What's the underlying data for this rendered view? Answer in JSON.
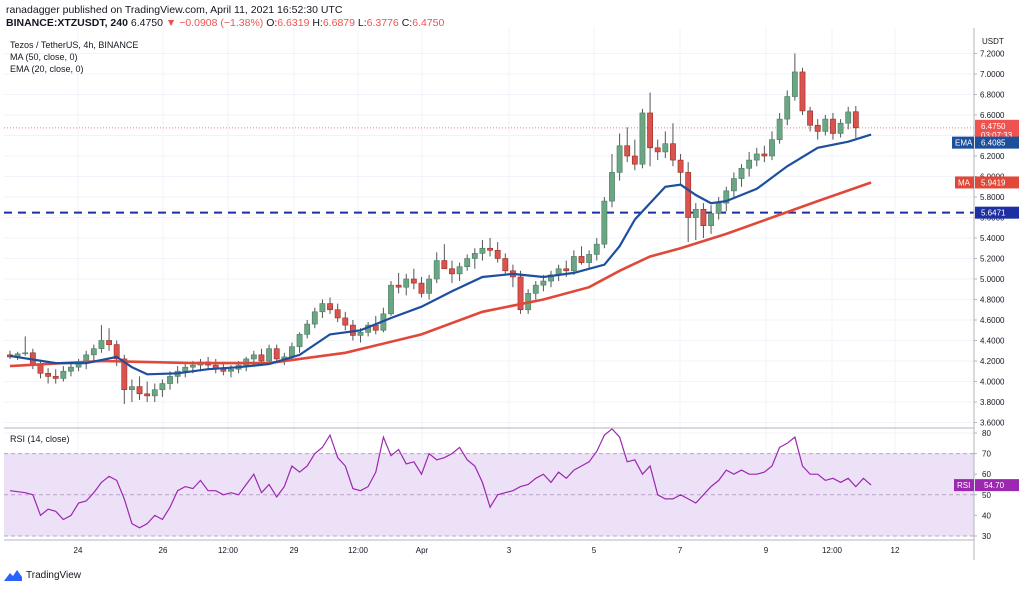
{
  "header": {
    "line1": "ranadagger published on TradingView.com, April 11, 2021 16:52:30 UTC",
    "symbol": "BINANCE:XTZUSDT, 240",
    "price": "6.4750",
    "change": "▼ −0.0908 (−1.38%)",
    "o_label": "O:",
    "o_val": "6.6319",
    "h_label": "H:",
    "h_val": "6.6879",
    "l_label": "L:",
    "l_val": "6.3776",
    "c_label": "C:",
    "c_val": "6.4750"
  },
  "legend": {
    "title": "Tezos / TetherUS, 4h, BINANCE",
    "ma": "MA (50, close, 0)",
    "ema": "EMA (20, close, 0)",
    "rsi": "RSI (14, close)"
  },
  "footer": {
    "brand": "TradingView"
  },
  "colors": {
    "up": "#26a69a",
    "up_fill": "#6ba583",
    "down": "#c0392b",
    "down_fill": "#d9534f",
    "ema": "#1c4f9c",
    "ma": "#e0493a",
    "rsi": "#9c27b0",
    "rsi_band": "#ede1f8",
    "support": "#1e2fa3"
  },
  "chart_data": [
    {
      "type": "candlestick",
      "title": "Tezos / TetherUS, 4h, BINANCE",
      "currency_label": "USDT",
      "ylim": [
        3.5,
        7.4
      ],
      "y_ticks": [
        "7.2000",
        "7.0000",
        "6.8000",
        "6.6000",
        "6.4000",
        "6.2000",
        "6.0000",
        "5.8000",
        "5.6000",
        "5.4000",
        "5.2000",
        "5.0000",
        "4.8000",
        "4.6000",
        "4.4000",
        "4.2000",
        "4.0000",
        "3.8000",
        "3.6000"
      ],
      "x_ticks": [
        "24",
        "26",
        "12:00",
        "29",
        "12:00",
        "Apr",
        "3",
        "5",
        "7",
        "9",
        "12:00",
        "12"
      ],
      "support_level": 5.6471,
      "tags": {
        "last_price": "6.4750",
        "countdown": "03:07:33",
        "ema_name": "EMA",
        "ema_value": "6.4085",
        "ma_name": "MA",
        "ma_value": "5.9419",
        "support_value": "5.6471"
      },
      "candles": [
        [
          4.26,
          4.3,
          4.22,
          4.24
        ],
        [
          4.24,
          4.29,
          4.21,
          4.27
        ],
        [
          4.27,
          4.44,
          4.25,
          4.28
        ],
        [
          4.28,
          4.32,
          4.12,
          4.16
        ],
        [
          4.16,
          4.2,
          4.03,
          4.08
        ],
        [
          4.08,
          4.13,
          3.98,
          4.05
        ],
        [
          4.05,
          4.12,
          3.98,
          4.03
        ],
        [
          4.03,
          4.15,
          4.0,
          4.1
        ],
        [
          4.1,
          4.18,
          4.05,
          4.14
        ],
        [
          4.14,
          4.22,
          4.1,
          4.18
        ],
        [
          4.18,
          4.3,
          4.12,
          4.26
        ],
        [
          4.26,
          4.36,
          4.2,
          4.32
        ],
        [
          4.32,
          4.55,
          4.28,
          4.4
        ],
        [
          4.4,
          4.52,
          4.3,
          4.36
        ],
        [
          4.36,
          4.4,
          4.15,
          4.22
        ],
        [
          4.22,
          4.26,
          3.78,
          3.92
        ],
        [
          3.92,
          4.02,
          3.8,
          3.95
        ],
        [
          3.95,
          4.05,
          3.82,
          3.88
        ],
        [
          3.88,
          4.0,
          3.8,
          3.86
        ],
        [
          3.86,
          3.98,
          3.8,
          3.92
        ],
        [
          3.92,
          4.02,
          3.85,
          3.98
        ],
        [
          3.98,
          4.1,
          3.92,
          4.05
        ],
        [
          4.05,
          4.15,
          3.98,
          4.1
        ],
        [
          4.1,
          4.18,
          4.04,
          4.14
        ],
        [
          4.14,
          4.2,
          4.08,
          4.16
        ],
        [
          4.16,
          4.22,
          4.1,
          4.19
        ],
        [
          4.19,
          4.24,
          4.12,
          4.16
        ],
        [
          4.16,
          4.22,
          4.08,
          4.12
        ],
        [
          4.12,
          4.18,
          4.06,
          4.1
        ],
        [
          4.1,
          4.16,
          4.04,
          4.12
        ],
        [
          4.12,
          4.2,
          4.08,
          4.16
        ],
        [
          4.16,
          4.24,
          4.1,
          4.22
        ],
        [
          4.22,
          4.3,
          4.16,
          4.26
        ],
        [
          4.26,
          4.32,
          4.18,
          4.2
        ],
        [
          4.2,
          4.36,
          4.18,
          4.32
        ],
        [
          4.32,
          4.36,
          4.18,
          4.22
        ],
        [
          4.22,
          4.28,
          4.16,
          4.24
        ],
        [
          4.24,
          4.38,
          4.2,
          4.34
        ],
        [
          4.34,
          4.48,
          4.28,
          4.46
        ],
        [
          4.46,
          4.6,
          4.42,
          4.56
        ],
        [
          4.56,
          4.72,
          4.52,
          4.68
        ],
        [
          4.68,
          4.8,
          4.62,
          4.76
        ],
        [
          4.76,
          4.82,
          4.66,
          4.7
        ],
        [
          4.7,
          4.76,
          4.58,
          4.62
        ],
        [
          4.62,
          4.68,
          4.5,
          4.55
        ],
        [
          4.55,
          4.6,
          4.4,
          4.45
        ],
        [
          4.45,
          4.52,
          4.38,
          4.48
        ],
        [
          4.48,
          4.58,
          4.44,
          4.55
        ],
        [
          4.55,
          4.64,
          4.46,
          4.5
        ],
        [
          4.5,
          4.72,
          4.48,
          4.66
        ],
        [
          4.66,
          4.98,
          4.64,
          4.94
        ],
        [
          4.94,
          5.06,
          4.86,
          4.92
        ],
        [
          4.92,
          5.05,
          4.84,
          5.0
        ],
        [
          5.0,
          5.1,
          4.9,
          4.96
        ],
        [
          4.96,
          5.02,
          4.82,
          4.86
        ],
        [
          4.86,
          5.04,
          4.8,
          5.0
        ],
        [
          5.0,
          5.26,
          4.96,
          5.18
        ],
        [
          5.18,
          5.34,
          5.1,
          5.1
        ],
        [
          5.1,
          5.18,
          4.96,
          5.05
        ],
        [
          5.05,
          5.16,
          4.98,
          5.12
        ],
        [
          5.12,
          5.24,
          5.08,
          5.2
        ],
        [
          5.2,
          5.3,
          5.1,
          5.25
        ],
        [
          5.25,
          5.38,
          5.18,
          5.3
        ],
        [
          5.3,
          5.4,
          5.22,
          5.28
        ],
        [
          5.28,
          5.36,
          5.16,
          5.2
        ],
        [
          5.2,
          5.25,
          5.04,
          5.08
        ],
        [
          5.08,
          5.14,
          4.92,
          5.02
        ],
        [
          5.02,
          5.08,
          4.66,
          4.7
        ],
        [
          4.7,
          4.9,
          4.66,
          4.86
        ],
        [
          4.86,
          4.98,
          4.8,
          4.94
        ],
        [
          4.94,
          5.04,
          4.88,
          4.98
        ],
        [
          4.98,
          5.08,
          4.92,
          5.04
        ],
        [
          5.04,
          5.14,
          4.98,
          5.1
        ],
        [
          5.1,
          5.18,
          5.02,
          5.08
        ],
        [
          5.08,
          5.28,
          5.04,
          5.22
        ],
        [
          5.22,
          5.32,
          5.14,
          5.16
        ],
        [
          5.16,
          5.28,
          5.1,
          5.24
        ],
        [
          5.24,
          5.4,
          5.18,
          5.34
        ],
        [
          5.34,
          5.8,
          5.3,
          5.76
        ],
        [
          5.76,
          6.22,
          5.7,
          6.04
        ],
        [
          6.04,
          6.42,
          5.96,
          6.3
        ],
        [
          6.3,
          6.48,
          6.14,
          6.2
        ],
        [
          6.2,
          6.36,
          6.06,
          6.12
        ],
        [
          6.12,
          6.66,
          6.08,
          6.62
        ],
        [
          6.62,
          6.82,
          6.1,
          6.28
        ],
        [
          6.28,
          6.36,
          6.16,
          6.24
        ],
        [
          6.24,
          6.44,
          6.18,
          6.32
        ],
        [
          6.32,
          6.52,
          6.1,
          6.16
        ],
        [
          6.16,
          6.22,
          5.92,
          6.04
        ],
        [
          6.04,
          6.14,
          5.36,
          5.6
        ],
        [
          5.6,
          5.74,
          5.38,
          5.68
        ],
        [
          5.68,
          5.74,
          5.4,
          5.52
        ],
        [
          5.52,
          5.72,
          5.44,
          5.64
        ],
        [
          5.64,
          5.8,
          5.58,
          5.74
        ],
        [
          5.74,
          5.9,
          5.66,
          5.86
        ],
        [
          5.86,
          6.04,
          5.78,
          5.98
        ],
        [
          5.98,
          6.12,
          5.9,
          6.08
        ],
        [
          6.08,
          6.24,
          6.0,
          6.16
        ],
        [
          6.16,
          6.28,
          6.1,
          6.22
        ],
        [
          6.22,
          6.3,
          6.14,
          6.2
        ],
        [
          6.2,
          6.44,
          6.16,
          6.36
        ],
        [
          6.36,
          6.62,
          6.32,
          6.56
        ],
        [
          6.56,
          6.84,
          6.5,
          6.78
        ],
        [
          6.78,
          7.2,
          6.74,
          7.02
        ],
        [
          7.02,
          7.06,
          6.6,
          6.64
        ],
        [
          6.64,
          6.68,
          6.44,
          6.5
        ],
        [
          6.5,
          6.56,
          6.36,
          6.44
        ],
        [
          6.44,
          6.6,
          6.4,
          6.56
        ],
        [
          6.56,
          6.62,
          6.36,
          6.42
        ],
        [
          6.42,
          6.56,
          6.38,
          6.52
        ],
        [
          6.52,
          6.68,
          6.46,
          6.63
        ],
        [
          6.6319,
          6.6879,
          6.3776,
          6.475
        ]
      ],
      "ema20": [
        [
          0,
          4.25
        ],
        [
          6,
          4.18
        ],
        [
          10,
          4.18
        ],
        [
          14,
          4.24
        ],
        [
          16,
          4.14
        ],
        [
          18,
          4.07
        ],
        [
          22,
          4.08
        ],
        [
          26,
          4.12
        ],
        [
          30,
          4.14
        ],
        [
          34,
          4.17
        ],
        [
          38,
          4.26
        ],
        [
          42,
          4.46
        ],
        [
          46,
          4.5
        ],
        [
          50,
          4.62
        ],
        [
          54,
          4.73
        ],
        [
          58,
          4.88
        ],
        [
          62,
          5.02
        ],
        [
          66,
          5.05
        ],
        [
          70,
          5.02
        ],
        [
          74,
          5.06
        ],
        [
          78,
          5.14
        ],
        [
          80,
          5.32
        ],
        [
          82,
          5.58
        ],
        [
          86,
          5.9
        ],
        [
          88,
          5.92
        ],
        [
          90,
          5.82
        ],
        [
          92,
          5.74
        ],
        [
          94,
          5.76
        ],
        [
          98,
          5.88
        ],
        [
          102,
          6.1
        ],
        [
          106,
          6.28
        ],
        [
          110,
          6.34
        ],
        [
          113,
          6.4085
        ]
      ],
      "ma50": [
        [
          0,
          4.15
        ],
        [
          12,
          4.2
        ],
        [
          24,
          4.18
        ],
        [
          34,
          4.18
        ],
        [
          44,
          4.28
        ],
        [
          54,
          4.46
        ],
        [
          62,
          4.68
        ],
        [
          70,
          4.8
        ],
        [
          76,
          4.92
        ],
        [
          80,
          5.08
        ],
        [
          84,
          5.22
        ],
        [
          88,
          5.3
        ],
        [
          94,
          5.44
        ],
        [
          100,
          5.6
        ],
        [
          106,
          5.76
        ],
        [
          113,
          5.9419
        ]
      ]
    },
    {
      "type": "line",
      "title": "RSI (14, close)",
      "ylim": [
        27,
        82
      ],
      "y_ticks": [
        "80",
        "70",
        "60",
        "50",
        "40",
        "30"
      ],
      "band": [
        30,
        70
      ],
      "value_tag": "54.70",
      "tag_name": "RSI",
      "values": [
        [
          0,
          52
        ],
        [
          2,
          51
        ],
        [
          3,
          50
        ],
        [
          4,
          40
        ],
        [
          5,
          43
        ],
        [
          6,
          42
        ],
        [
          7,
          38
        ],
        [
          8,
          40
        ],
        [
          9,
          46
        ],
        [
          10,
          47
        ],
        [
          11,
          51
        ],
        [
          12,
          56
        ],
        [
          13,
          59
        ],
        [
          14,
          57
        ],
        [
          15,
          48
        ],
        [
          16,
          36
        ],
        [
          17,
          34
        ],
        [
          18,
          36
        ],
        [
          19,
          40
        ],
        [
          20,
          38
        ],
        [
          21,
          44
        ],
        [
          22,
          52
        ],
        [
          23,
          54
        ],
        [
          24,
          53
        ],
        [
          25,
          57
        ],
        [
          26,
          52
        ],
        [
          27,
          52
        ],
        [
          28,
          50
        ],
        [
          29,
          51
        ],
        [
          30,
          50
        ],
        [
          31,
          55
        ],
        [
          32,
          60
        ],
        [
          33,
          51
        ],
        [
          34,
          55
        ],
        [
          35,
          49
        ],
        [
          36,
          54
        ],
        [
          37,
          64
        ],
        [
          38,
          61
        ],
        [
          39,
          64
        ],
        [
          40,
          70
        ],
        [
          41,
          73
        ],
        [
          42,
          79
        ],
        [
          43,
          68
        ],
        [
          44,
          64
        ],
        [
          45,
          53
        ],
        [
          46,
          52
        ],
        [
          47,
          54
        ],
        [
          48,
          61
        ],
        [
          49,
          78
        ],
        [
          50,
          69
        ],
        [
          51,
          72
        ],
        [
          52,
          65
        ],
        [
          53,
          66
        ],
        [
          54,
          60
        ],
        [
          55,
          70
        ],
        [
          56,
          67
        ],
        [
          57,
          68
        ],
        [
          58,
          70
        ],
        [
          59,
          73
        ],
        [
          60,
          67
        ],
        [
          61,
          64
        ],
        [
          62,
          56
        ],
        [
          63,
          44
        ],
        [
          64,
          50
        ],
        [
          65,
          51
        ],
        [
          66,
          52
        ],
        [
          67,
          54
        ],
        [
          68,
          55
        ],
        [
          69,
          58
        ],
        [
          70,
          60
        ],
        [
          71,
          56
        ],
        [
          72,
          61
        ],
        [
          73,
          58
        ],
        [
          74,
          62
        ],
        [
          75,
          64
        ],
        [
          76,
          66
        ],
        [
          77,
          71
        ],
        [
          78,
          79
        ],
        [
          79,
          82
        ],
        [
          80,
          78
        ],
        [
          81,
          66
        ],
        [
          82,
          67
        ],
        [
          83,
          60
        ],
        [
          84,
          64
        ],
        [
          85,
          50
        ],
        [
          86,
          48
        ],
        [
          87,
          48
        ],
        [
          88,
          50
        ],
        [
          89,
          48
        ],
        [
          90,
          46
        ],
        [
          91,
          50
        ],
        [
          92,
          54
        ],
        [
          93,
          57
        ],
        [
          94,
          62
        ],
        [
          95,
          60
        ],
        [
          96,
          62
        ],
        [
          97,
          60
        ],
        [
          98,
          60
        ],
        [
          99,
          61
        ],
        [
          100,
          64
        ],
        [
          101,
          73
        ],
        [
          102,
          75
        ],
        [
          103,
          78
        ],
        [
          104,
          64
        ],
        [
          105,
          60
        ],
        [
          106,
          60
        ],
        [
          107,
          57
        ],
        [
          108,
          58
        ],
        [
          109,
          56
        ],
        [
          110,
          58
        ],
        [
          111,
          54
        ],
        [
          112,
          58
        ],
        [
          113,
          54.7
        ]
      ]
    }
  ]
}
